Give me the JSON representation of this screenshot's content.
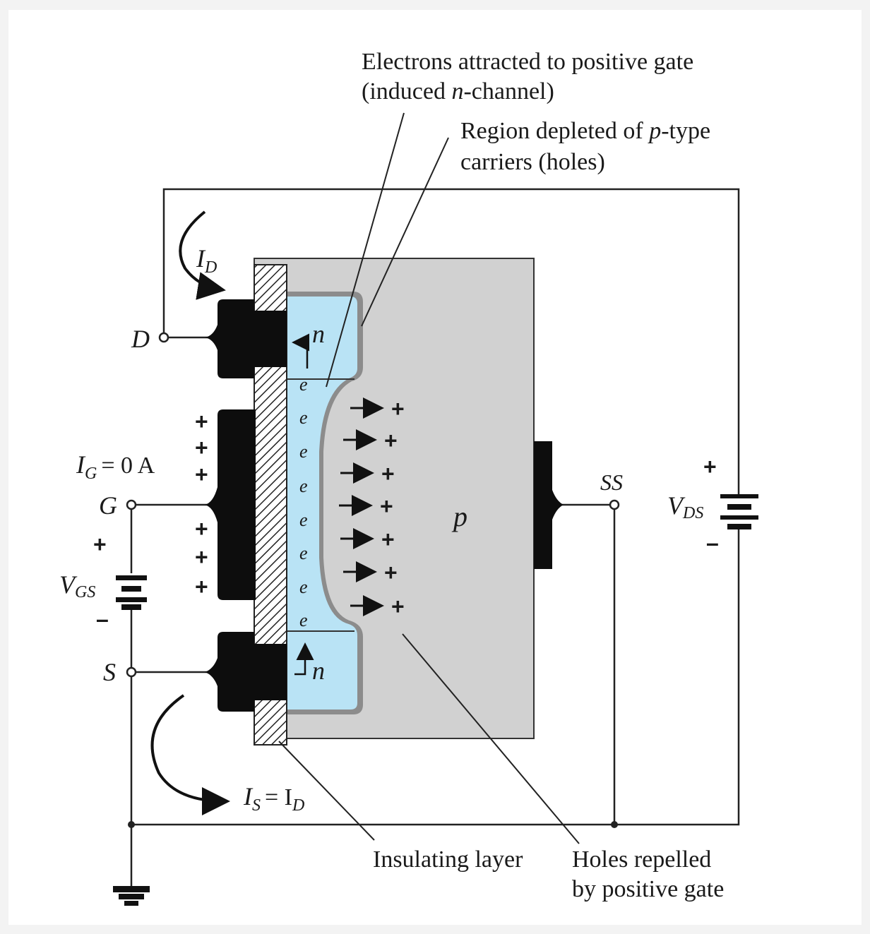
{
  "annotations": {
    "electrons_line1": "Electrons attracted to positive gate",
    "electrons_line2_pre": "(induced ",
    "electrons_line2_n": "n",
    "electrons_line2_post": "-channel)",
    "depleted_line1_pre": "Region depleted of ",
    "depleted_line1_p": "p",
    "depleted_line1_post": "-type",
    "depleted_line2": "carriers (holes)",
    "insulating": "Insulating layer",
    "holes_line1": "Holes repelled",
    "holes_line2": "by positive gate"
  },
  "terminals": {
    "drain": "D",
    "gate": "G",
    "source": "S",
    "substrate": "SS"
  },
  "currents": {
    "id_main": "I",
    "id_sub": "D",
    "ig_main": "I",
    "ig_sub": "G",
    "ig_value": "= 0 A",
    "is_main": "I",
    "is_sub": "S",
    "is_eq": "= I",
    "is_eq_sub": "D"
  },
  "sources": {
    "vgs_main": "V",
    "vgs_sub": "GS",
    "vds_main": "V",
    "vds_sub": "DS",
    "plus": "+",
    "minus": "–"
  },
  "regions": {
    "n_label": "n",
    "p_label": "p",
    "electron": "e",
    "hole": "+"
  },
  "colors": {
    "substrate": "#d1d1d1",
    "channel": "#b9e3f5",
    "metal": "#0d0d0d",
    "depletion_edge": "#8a8a8a"
  }
}
